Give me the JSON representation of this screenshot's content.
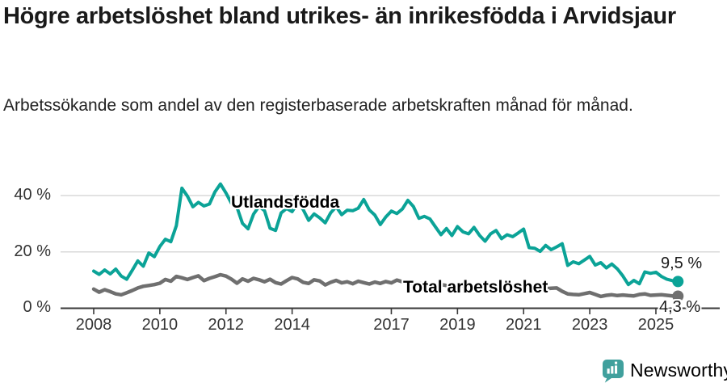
{
  "header": {
    "title": "Högre arbetslöshet bland utrikes- än inrikesfödda i Arvidsjaur",
    "subtitle": "Arbetssökande som andel av den registerbaserade arbetskraften månad för månad."
  },
  "colors": {
    "accent_teal": "#0ba397",
    "series_gray": "#6f6f6f",
    "logo_teal": "#40a09d",
    "gridline": "#d9d9d9",
    "axis": "#3a3a3a",
    "text_dark": "#1a1a1a",
    "text_secondary": "#333333"
  },
  "chart_data": {
    "type": "line",
    "title": "Högre arbetslöshet bland utrikes- än inrikesfödda i Arvidsjaur",
    "subtitle": "Arbetssökande som andel av den registerbaserade arbetskraften månad för månad.",
    "xlabel": "",
    "ylabel": "",
    "grid": "horizontal",
    "ylim": [
      0,
      46
    ],
    "y_ticks": [
      "0 %",
      "20 %",
      "40 %"
    ],
    "x_ticks": [
      2008,
      2010,
      2012,
      2014,
      2017,
      2019,
      2021,
      2023,
      2025
    ],
    "x_start": 2008.0,
    "x_end": 2025.67,
    "points_per_year": 6,
    "series": [
      {
        "name": "Total arbetslöshet",
        "color": "#6f6f6f",
        "end_label": "4,3 %",
        "end_value": 4.3,
        "values": [
          6.8,
          5.7,
          6.6,
          5.9,
          5.1,
          4.8,
          5.5,
          6.3,
          7.2,
          7.8,
          8.1,
          8.4,
          8.9,
          10.2,
          9.6,
          11.3,
          10.8,
          10.2,
          10.9,
          11.5,
          9.8,
          10.6,
          11.2,
          11.9,
          11.4,
          10.3,
          8.9,
          10.4,
          9.6,
          10.6,
          10.1,
          9.4,
          10.3,
          9.1,
          8.6,
          9.8,
          10.9,
          10.4,
          9.2,
          8.8,
          10.1,
          9.7,
          8.3,
          9.2,
          9.9,
          9.0,
          9.4,
          8.7,
          9.6,
          9.1,
          8.6,
          9.3,
          8.8,
          9.5,
          9.0,
          10.0,
          9.4,
          9.2,
          8.9,
          8.7,
          8.9,
          8.5,
          8.2,
          8.4,
          8.1,
          8.0,
          8.2,
          7.9,
          8.1,
          7.8,
          7.7,
          7.9,
          8.3,
          8.6,
          8.4,
          8.2,
          8.0,
          7.8,
          7.6,
          7.4,
          7.2,
          7.0,
          6.9,
          7.1,
          7.2,
          6.0,
          5.1,
          4.9,
          4.8,
          5.2,
          5.6,
          4.9,
          4.2,
          4.6,
          4.8,
          4.5,
          4.7,
          4.5,
          4.4,
          4.9,
          5.1,
          4.6,
          4.7,
          4.8,
          4.6,
          4.4,
          4.3
        ]
      },
      {
        "name": "Utlandsfödda",
        "color": "#0ba397",
        "end_label": "9,5 %",
        "end_value": 9.5,
        "values": [
          13.2,
          12.0,
          13.6,
          12.2,
          13.9,
          11.4,
          10.3,
          13.5,
          16.8,
          14.9,
          19.6,
          18.3,
          21.9,
          24.5,
          23.6,
          29.3,
          42.6,
          39.8,
          36.0,
          37.6,
          36.3,
          37.0,
          41.3,
          44.1,
          40.9,
          37.2,
          35.8,
          30.1,
          28.2,
          33.4,
          36.2,
          34.6,
          28.4,
          27.6,
          33.8,
          35.4,
          34.3,
          37.4,
          35.0,
          31.2,
          33.5,
          32.1,
          30.3,
          33.9,
          36.0,
          33.2,
          34.8,
          34.6,
          35.5,
          38.6,
          34.9,
          33.1,
          29.7,
          32.4,
          34.5,
          33.6,
          35.2,
          38.3,
          36.1,
          31.9,
          32.6,
          31.7,
          28.9,
          26.1,
          28.3,
          25.8,
          29.0,
          27.1,
          26.4,
          28.7,
          25.9,
          23.8,
          26.4,
          27.6,
          24.7,
          26.1,
          25.4,
          26.7,
          28.1,
          21.5,
          21.3,
          20.2,
          22.3,
          20.8,
          21.8,
          22.9,
          15.2,
          16.5,
          15.8,
          17.1,
          18.4,
          15.3,
          16.2,
          14.3,
          15.7,
          14.0,
          11.5,
          8.4,
          9.9,
          8.7,
          12.9,
          12.4,
          12.8,
          11.3,
          10.3,
          9.8,
          9.5
        ]
      }
    ]
  },
  "footer": {
    "brand": "Newsworthy"
  }
}
